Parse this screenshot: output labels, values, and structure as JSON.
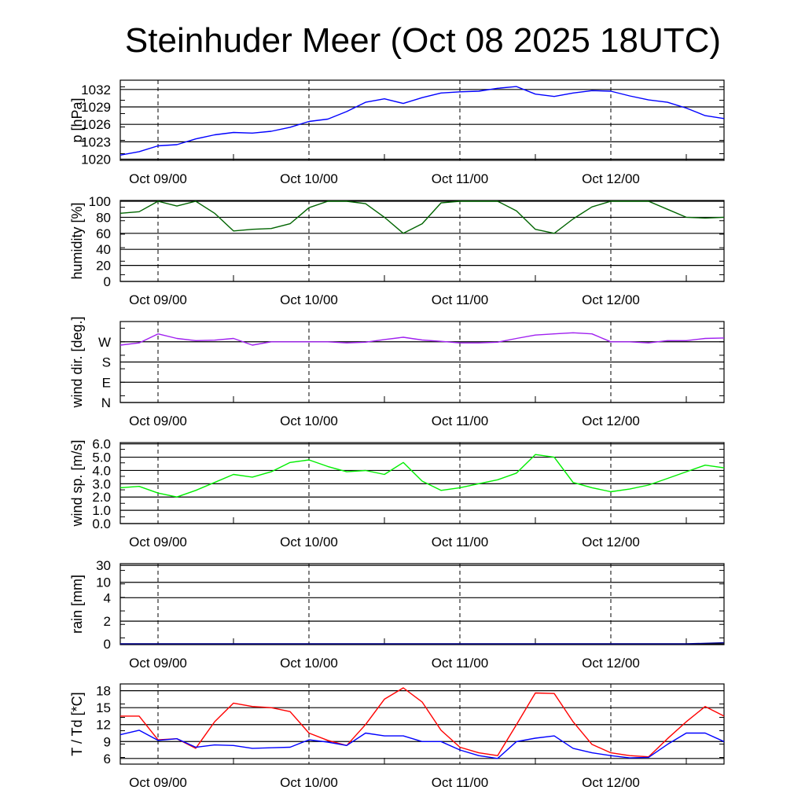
{
  "chart_data": [
    {
      "type": "line",
      "title": "Steinhuder Meer (Oct 08 2025 18UTC)",
      "x_hours_from_start": [
        0,
        3,
        6,
        9,
        12,
        15,
        18,
        21,
        24,
        27,
        30,
        33,
        36,
        39,
        42,
        45,
        48,
        51,
        54,
        57,
        60,
        63,
        66,
        69,
        72,
        75,
        78,
        81,
        84,
        87,
        90,
        93,
        96
      ],
      "x_tick_labels": [
        "Oct 09/00",
        "Oct 10/00",
        "Oct 11/00",
        "Oct 12/00"
      ],
      "x_range_hours": [
        0,
        96
      ],
      "panels": [
        {
          "id": "pressure",
          "ylabel": "p [hPa]",
          "ylim": [
            1019.8,
            1033.6
          ],
          "yticks": [
            1020,
            1023,
            1026,
            1029,
            1032
          ],
          "ytick_labels": [
            "1020",
            "1023",
            "1026",
            "1029",
            "1032"
          ],
          "series": [
            {
              "name": "pressure",
              "color": "#0000ff",
              "values": [
                1020.7,
                1021.3,
                1022.3,
                1022.5,
                1023.5,
                1024.2,
                1024.6,
                1024.5,
                1024.8,
                1025.5,
                1026.5,
                1026.9,
                1028.2,
                1029.8,
                1030.4,
                1029.6,
                1030.6,
                1031.4,
                1031.6,
                1031.7,
                1032.2,
                1032.5,
                1031.2,
                1030.8,
                1031.4,
                1031.8,
                1031.7,
                1030.9,
                1030.2,
                1029.8,
                1028.8,
                1027.5,
                1027.0
              ]
            }
          ]
        },
        {
          "id": "humidity",
          "ylabel": "humidity [%]",
          "ylim": [
            0,
            101
          ],
          "yticks": [
            0,
            20,
            40,
            60,
            80,
            100
          ],
          "ytick_labels": [
            "0",
            "20",
            "40",
            "60",
            "80",
            "100"
          ],
          "series": [
            {
              "name": "humidity",
              "color": "#006400",
              "values": [
                85,
                87,
                100,
                94,
                100,
                85,
                63,
                65,
                66,
                72,
                92,
                100,
                100,
                97,
                80,
                60,
                72,
                98,
                100,
                100,
                100,
                88,
                65,
                60,
                78,
                93,
                100,
                100,
                100,
                90,
                80,
                79,
                80
              ]
            }
          ]
        },
        {
          "id": "winddir",
          "ylabel": "wind dir. [deg.]",
          "ylim": [
            0,
            360
          ],
          "yticks": [
            0,
            90,
            180,
            270
          ],
          "ytick_labels": [
            "N",
            "E",
            "S",
            "W"
          ],
          "series": [
            {
              "name": "wind direction",
              "color": "#a020f0",
              "values": [
                255,
                265,
                305,
                285,
                275,
                277,
                285,
                255,
                270,
                270,
                270,
                270,
                265,
                268,
                280,
                290,
                278,
                272,
                265,
                265,
                268,
                285,
                300,
                305,
                310,
                305,
                270,
                270,
                265,
                275,
                275,
                285,
                287
              ]
            }
          ]
        },
        {
          "id": "windspeed",
          "ylabel": "wind sp. [m/s]",
          "ylim": [
            0,
            6.1
          ],
          "yticks": [
            0,
            1,
            2,
            3,
            4,
            5,
            6
          ],
          "ytick_labels": [
            "0.0",
            "1.0",
            "2.0",
            "3.0",
            "4.0",
            "5.0",
            "6.0"
          ],
          "series": [
            {
              "name": "wind speed",
              "color": "#00ee00",
              "values": [
                2.7,
                2.8,
                2.3,
                2.0,
                2.5,
                3.1,
                3.7,
                3.5,
                3.9,
                4.6,
                4.8,
                4.3,
                3.9,
                4.0,
                3.7,
                4.6,
                3.2,
                2.5,
                2.7,
                3.0,
                3.3,
                3.8,
                5.2,
                5.0,
                3.1,
                2.7,
                2.4,
                2.6,
                2.9,
                3.4,
                3.9,
                4.4,
                4.2
              ]
            }
          ]
        },
        {
          "id": "rain",
          "ylabel": "rain [mm]",
          "ylim": [
            0,
            30
          ],
          "scale": "nonlinear",
          "yticks": [
            0,
            2,
            4,
            10,
            30
          ],
          "ytick_labels": [
            "0",
            "2",
            "4",
            "10",
            "30"
          ],
          "series": [
            {
              "name": "rain",
              "color": "#00008b",
              "values": [
                0,
                0,
                0,
                0,
                0,
                0,
                0,
                0,
                0,
                0,
                0,
                0,
                0,
                0,
                0,
                0,
                0,
                0,
                0,
                0,
                0,
                0,
                0,
                0,
                0,
                0,
                0,
                0,
                0,
                0,
                0,
                0.05,
                0.1
              ]
            }
          ]
        },
        {
          "id": "temperature",
          "ylabel": "T / Td [*C]",
          "ylim": [
            5,
            19.2
          ],
          "yticks": [
            6,
            9,
            12,
            15,
            18
          ],
          "ytick_labels": [
            "6",
            "9",
            "12",
            "15",
            "18"
          ],
          "series": [
            {
              "name": "T",
              "color": "#ff0000",
              "values": [
                13.5,
                13.5,
                9.3,
                9.5,
                7.8,
                12.5,
                15.8,
                15.2,
                15.0,
                14.3,
                10.5,
                9.2,
                8.3,
                12.0,
                16.5,
                18.5,
                16.0,
                11.0,
                8.0,
                7.0,
                6.5,
                12.0,
                17.6,
                17.5,
                12.5,
                8.5,
                7.0,
                6.5,
                6.3,
                9.5,
                12.5,
                15.2,
                13.5
              ]
            },
            {
              "name": "Td",
              "color": "#0000ff",
              "values": [
                10.2,
                11.0,
                9.2,
                9.5,
                8.0,
                8.4,
                8.3,
                7.8,
                7.9,
                8.0,
                9.3,
                8.9,
                8.3,
                10.5,
                10.0,
                10.0,
                9.0,
                9.0,
                7.5,
                6.5,
                6.0,
                9.0,
                9.6,
                10.0,
                7.8,
                7.0,
                6.5,
                6.1,
                6.2,
                8.5,
                10.5,
                10.5,
                9.0
              ]
            }
          ]
        }
      ]
    }
  ]
}
